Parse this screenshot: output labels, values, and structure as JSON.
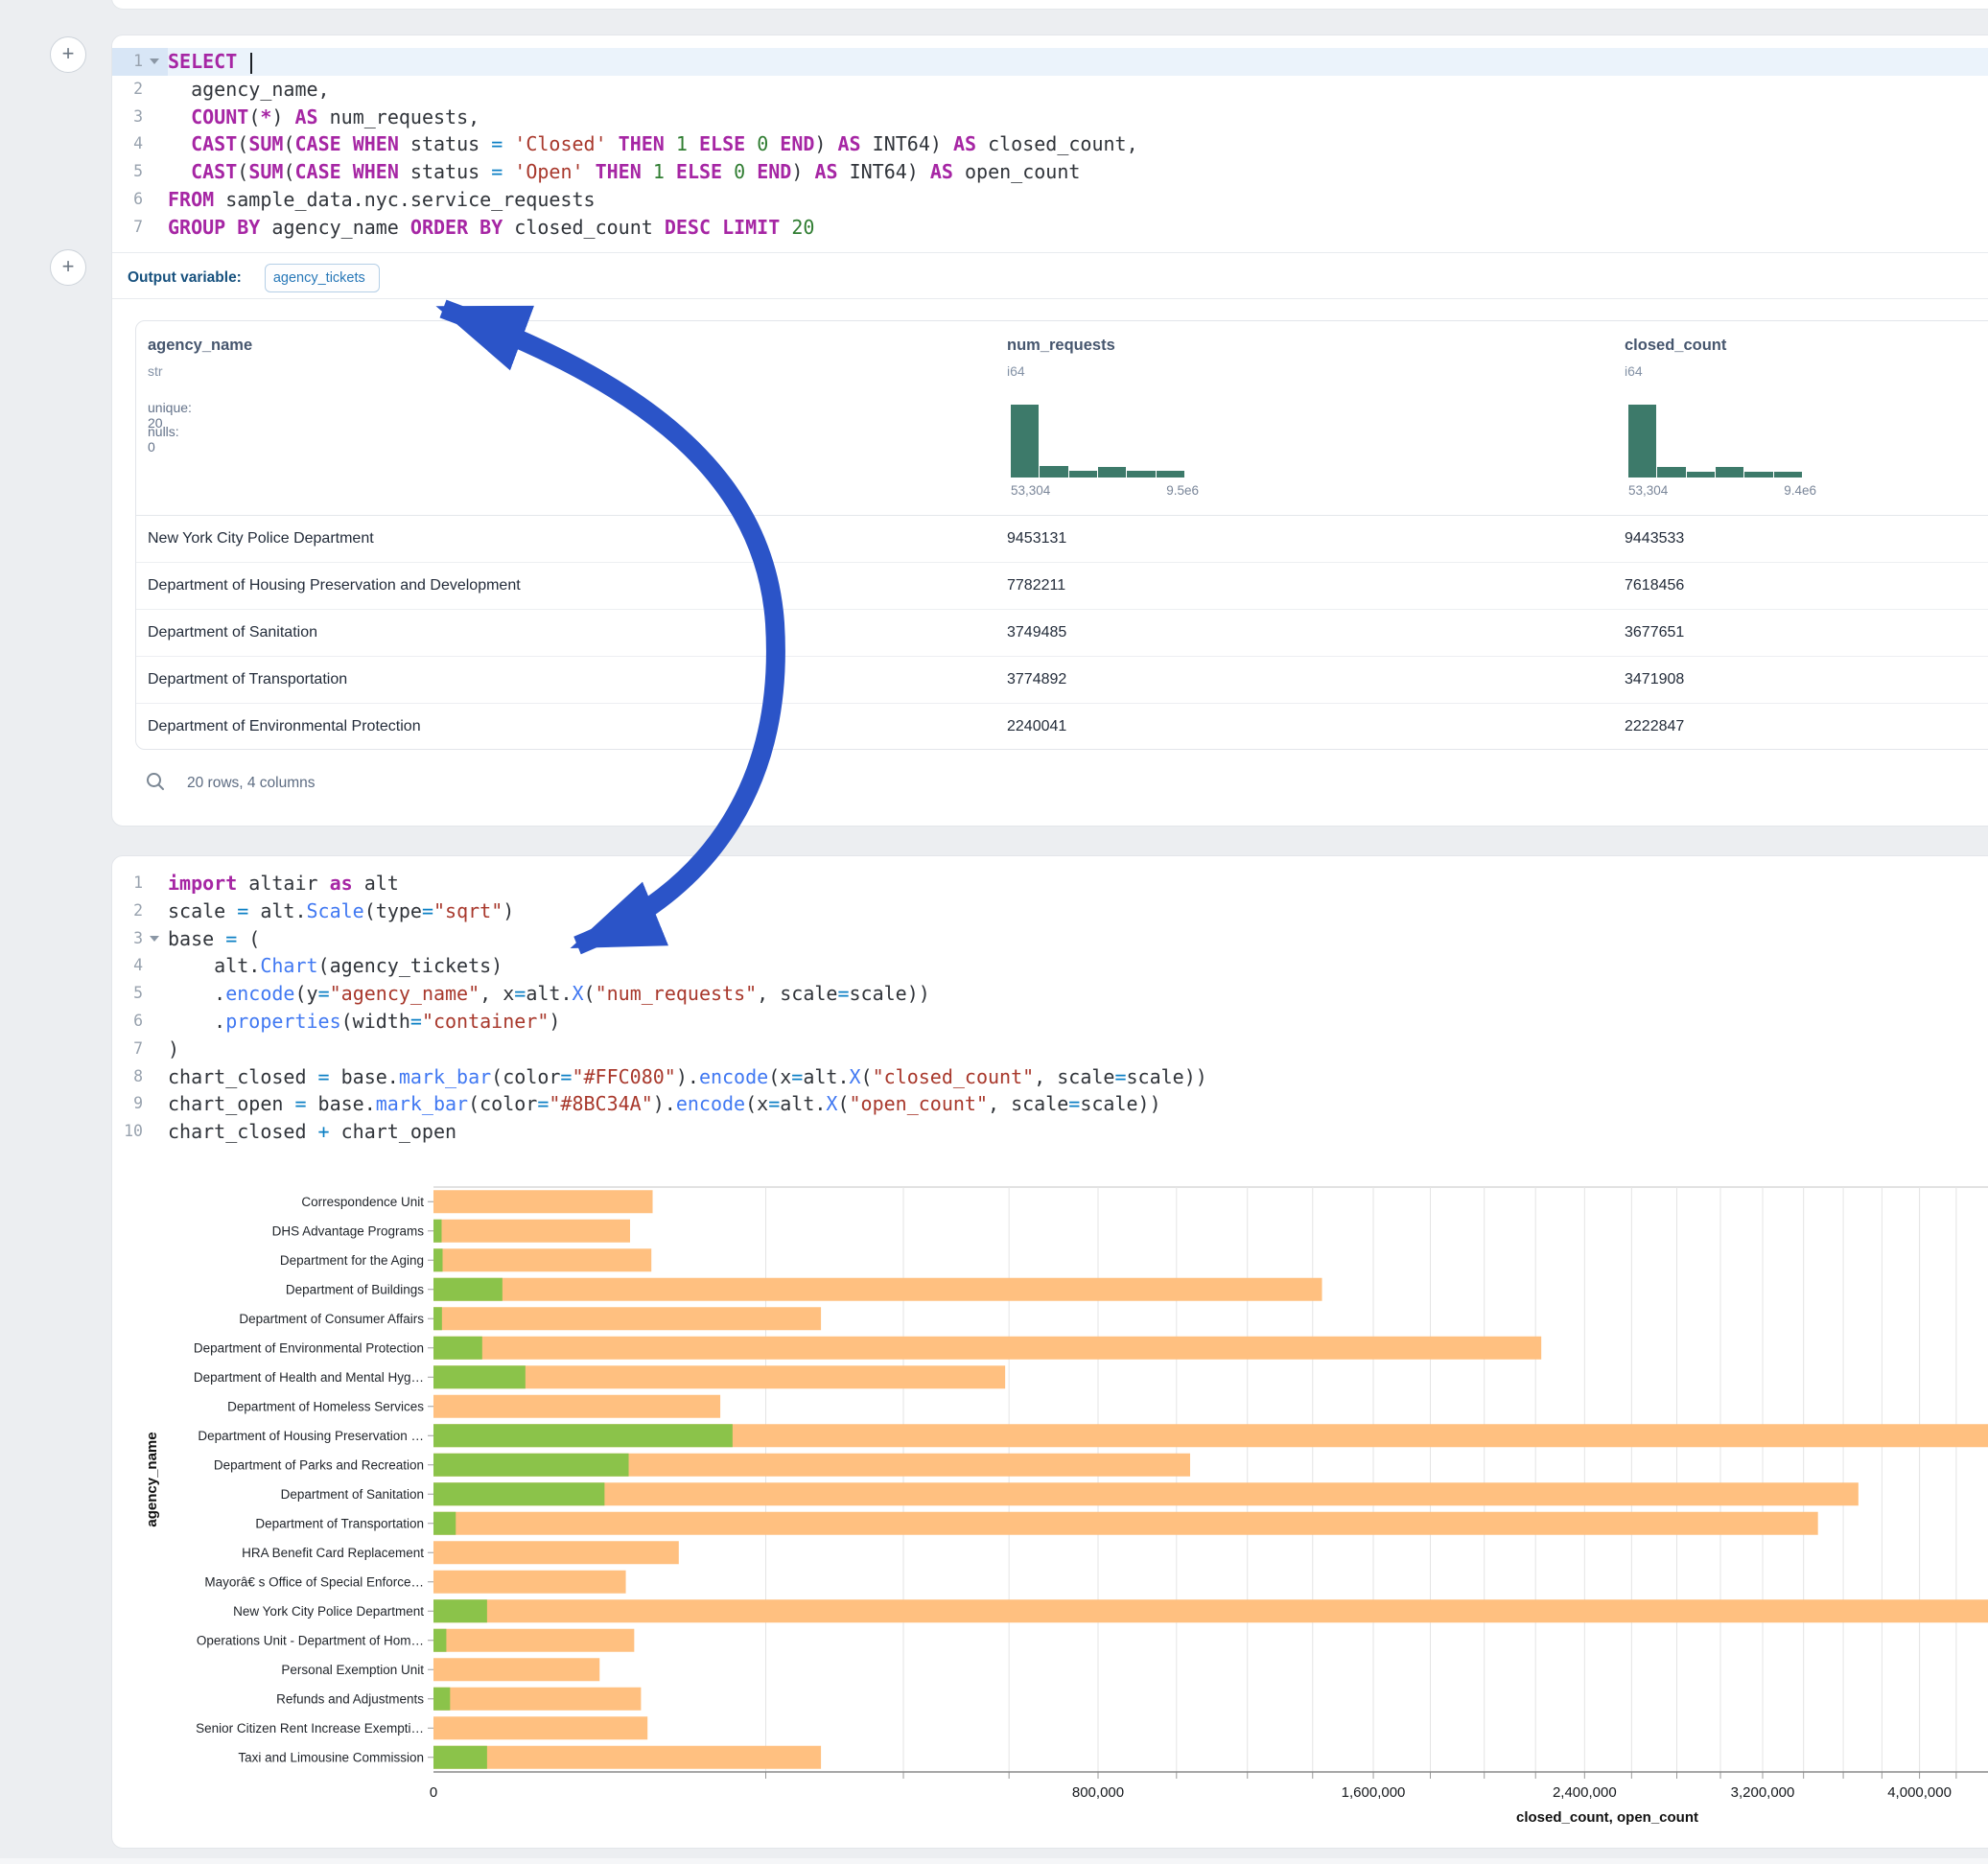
{
  "accent_colors": {
    "arrow_blue": "#2b54c8",
    "histogram_teal": "#3d7a6a",
    "bar_orange": "#FFC080",
    "bar_green": "#8BC34A"
  },
  "sql_cell": {
    "lines": [
      {
        "n": "1",
        "fold": true,
        "active": true,
        "cursor": true,
        "tokens": [
          [
            "kw",
            "SELECT"
          ],
          [
            "d",
            " "
          ]
        ]
      },
      {
        "n": "2",
        "tokens": [
          [
            "d",
            "  agency_name,"
          ]
        ]
      },
      {
        "n": "3",
        "tokens": [
          [
            "d",
            "  "
          ],
          [
            "kw",
            "COUNT"
          ],
          [
            "d",
            "("
          ],
          [
            "kw",
            "*"
          ],
          [
            "d",
            ") "
          ],
          [
            "kw",
            "AS"
          ],
          [
            "d",
            " num_requests,"
          ]
        ]
      },
      {
        "n": "4",
        "tokens": [
          [
            "d",
            "  "
          ],
          [
            "kw",
            "CAST"
          ],
          [
            "d",
            "("
          ],
          [
            "kw",
            "SUM"
          ],
          [
            "d",
            "("
          ],
          [
            "kw",
            "CASE"
          ],
          [
            "d",
            " "
          ],
          [
            "kw",
            "WHEN"
          ],
          [
            "d",
            " status "
          ],
          [
            "op",
            "="
          ],
          [
            "d",
            " "
          ],
          [
            "str",
            "'Closed'"
          ],
          [
            "d",
            " "
          ],
          [
            "kw",
            "THEN"
          ],
          [
            "d",
            " "
          ],
          [
            "num",
            "1"
          ],
          [
            "d",
            " "
          ],
          [
            "kw",
            "ELSE"
          ],
          [
            "d",
            " "
          ],
          [
            "num",
            "0"
          ],
          [
            "d",
            " "
          ],
          [
            "kw",
            "END"
          ],
          [
            "d",
            ") "
          ],
          [
            "kw",
            "AS"
          ],
          [
            "d",
            " INT64) "
          ],
          [
            "kw",
            "AS"
          ],
          [
            "d",
            " closed_count,"
          ]
        ]
      },
      {
        "n": "5",
        "tokens": [
          [
            "d",
            "  "
          ],
          [
            "kw",
            "CAST"
          ],
          [
            "d",
            "("
          ],
          [
            "kw",
            "SUM"
          ],
          [
            "d",
            "("
          ],
          [
            "kw",
            "CASE"
          ],
          [
            "d",
            " "
          ],
          [
            "kw",
            "WHEN"
          ],
          [
            "d",
            " status "
          ],
          [
            "op",
            "="
          ],
          [
            "d",
            " "
          ],
          [
            "str",
            "'Open'"
          ],
          [
            "d",
            " "
          ],
          [
            "kw",
            "THEN"
          ],
          [
            "d",
            " "
          ],
          [
            "num",
            "1"
          ],
          [
            "d",
            " "
          ],
          [
            "kw",
            "ELSE"
          ],
          [
            "d",
            " "
          ],
          [
            "num",
            "0"
          ],
          [
            "d",
            " "
          ],
          [
            "kw",
            "END"
          ],
          [
            "d",
            ") "
          ],
          [
            "kw",
            "AS"
          ],
          [
            "d",
            " INT64) "
          ],
          [
            "kw",
            "AS"
          ],
          [
            "d",
            " open_count"
          ]
        ]
      },
      {
        "n": "6",
        "tokens": [
          [
            "kw",
            "FROM"
          ],
          [
            "d",
            " sample_data.nyc.service_requests"
          ]
        ]
      },
      {
        "n": "7",
        "tokens": [
          [
            "kw",
            "GROUP"
          ],
          [
            "d",
            " "
          ],
          [
            "kw",
            "BY"
          ],
          [
            "d",
            " agency_name "
          ],
          [
            "kw",
            "ORDER"
          ],
          [
            "d",
            " "
          ],
          [
            "kw",
            "BY"
          ],
          [
            "d",
            " closed_count "
          ],
          [
            "kw",
            "DESC"
          ],
          [
            "d",
            " "
          ],
          [
            "kw",
            "LIMIT"
          ],
          [
            "d",
            " "
          ],
          [
            "num",
            "20"
          ]
        ]
      }
    ],
    "output_variable_label": "Output variable:",
    "output_variable_value": "agency_tickets"
  },
  "table": {
    "columns": [
      {
        "name": "agency_name",
        "type": "str",
        "stats": [
          "unique: 20",
          "nulls: 0"
        ]
      },
      {
        "name": "num_requests",
        "type": "i64",
        "hist": [
          1,
          0.16,
          0.09,
          0.15,
          0.09,
          0.09
        ],
        "hist_labels": [
          "53,304",
          "9.5e6"
        ]
      },
      {
        "name": "closed_count",
        "type": "i64",
        "hist": [
          1,
          0.15,
          0.08,
          0.14,
          0.08,
          0.08
        ],
        "hist_labels": [
          "53,304",
          "9.4e6"
        ]
      }
    ],
    "rows": [
      [
        "New York City Police Department",
        "9453131",
        "9443533"
      ],
      [
        "Department of Housing Preservation and Development",
        "7782211",
        "7618456"
      ],
      [
        "Department of Sanitation",
        "3749485",
        "3677651"
      ],
      [
        "Department of Transportation",
        "3774892",
        "3471908"
      ],
      [
        "Department of Environmental Protection",
        "2240041",
        "2222847"
      ]
    ],
    "footer": "20 rows, 4 columns"
  },
  "python_cell": {
    "lines": [
      {
        "n": "1",
        "tokens": [
          [
            "kw",
            "import"
          ],
          [
            "d",
            " altair "
          ],
          [
            "kw",
            "as"
          ],
          [
            "d",
            " alt"
          ]
        ]
      },
      {
        "n": "2",
        "tokens": [
          [
            "d",
            "scale "
          ],
          [
            "op",
            "="
          ],
          [
            "d",
            " alt."
          ],
          [
            "fn",
            "Scale"
          ],
          [
            "d",
            "(type"
          ],
          [
            "op",
            "="
          ],
          [
            "str",
            "\"sqrt\""
          ],
          [
            "d",
            ")"
          ]
        ]
      },
      {
        "n": "3",
        "fold": true,
        "tokens": [
          [
            "d",
            "base "
          ],
          [
            "op",
            "="
          ],
          [
            "d",
            " ("
          ]
        ]
      },
      {
        "n": "4",
        "tokens": [
          [
            "d",
            "    alt."
          ],
          [
            "fn",
            "Chart"
          ],
          [
            "d",
            "(agency_tickets)"
          ]
        ]
      },
      {
        "n": "5",
        "tokens": [
          [
            "d",
            "    ."
          ],
          [
            "fn",
            "encode"
          ],
          [
            "d",
            "(y"
          ],
          [
            "op",
            "="
          ],
          [
            "str",
            "\"agency_name\""
          ],
          [
            "d",
            ", x"
          ],
          [
            "op",
            "="
          ],
          [
            "d",
            "alt."
          ],
          [
            "fn",
            "X"
          ],
          [
            "d",
            "("
          ],
          [
            "str",
            "\"num_requests\""
          ],
          [
            "d",
            ", scale"
          ],
          [
            "op",
            "="
          ],
          [
            "d",
            "scale))"
          ]
        ]
      },
      {
        "n": "6",
        "tokens": [
          [
            "d",
            "    ."
          ],
          [
            "fn",
            "properties"
          ],
          [
            "d",
            "(width"
          ],
          [
            "op",
            "="
          ],
          [
            "str",
            "\"container\""
          ],
          [
            "d",
            ")"
          ]
        ]
      },
      {
        "n": "7",
        "tokens": [
          [
            "d",
            ")"
          ]
        ]
      },
      {
        "n": "8",
        "tokens": [
          [
            "d",
            "chart_closed "
          ],
          [
            "op",
            "="
          ],
          [
            "d",
            " base."
          ],
          [
            "fn",
            "mark_bar"
          ],
          [
            "d",
            "(color"
          ],
          [
            "op",
            "="
          ],
          [
            "str",
            "\"#FFC080\""
          ],
          [
            "d",
            ")."
          ],
          [
            "fn",
            "encode"
          ],
          [
            "d",
            "(x"
          ],
          [
            "op",
            "="
          ],
          [
            "d",
            "alt."
          ],
          [
            "fn",
            "X"
          ],
          [
            "d",
            "("
          ],
          [
            "str",
            "\"closed_count\""
          ],
          [
            "d",
            ", scale"
          ],
          [
            "op",
            "="
          ],
          [
            "d",
            "scale))"
          ]
        ]
      },
      {
        "n": "9",
        "tokens": [
          [
            "d",
            "chart_open "
          ],
          [
            "op",
            "="
          ],
          [
            "d",
            " base."
          ],
          [
            "fn",
            "mark_bar"
          ],
          [
            "d",
            "(color"
          ],
          [
            "op",
            "="
          ],
          [
            "str",
            "\"#8BC34A\""
          ],
          [
            "d",
            ")."
          ],
          [
            "fn",
            "encode"
          ],
          [
            "d",
            "(x"
          ],
          [
            "op",
            "="
          ],
          [
            "d",
            "alt."
          ],
          [
            "fn",
            "X"
          ],
          [
            "d",
            "("
          ],
          [
            "str",
            "\"open_count\""
          ],
          [
            "d",
            ", scale"
          ],
          [
            "op",
            "="
          ],
          [
            "d",
            "scale))"
          ]
        ]
      },
      {
        "n": "10",
        "tokens": [
          [
            "d",
            "chart_closed "
          ],
          [
            "op",
            "+"
          ],
          [
            "d",
            " chart_open"
          ]
        ]
      }
    ]
  },
  "chart_data": {
    "type": "bar",
    "orientation": "horizontal",
    "x_scale": "sqrt",
    "grid": true,
    "gridline_step": 200000,
    "xlabel": "closed_count, open_count",
    "ylabel": "agency_name",
    "x_ticks": [
      0,
      800000,
      1600000,
      2400000,
      3200000,
      4000000
    ],
    "x_tick_labels": [
      "0",
      "800,000",
      "1,600,000",
      "2,400,000",
      "3,200,000",
      "4,000,000"
    ],
    "categories": [
      "Correspondence Unit",
      "DHS Advantage Programs",
      "Department for the Aging",
      "Department of Buildings",
      "Department of Consumer Affairs",
      "Department of Environmental Protection",
      "Department of Health and Mental Hyg…",
      "Department of Homeless Services",
      "Department of Housing Preservation …",
      "Department of Parks and Recreation",
      "Department of Sanitation",
      "Department of Transportation",
      "HRA Benefit Card Replacement",
      "Mayorâ€ s Office of Special Enforce…",
      "New York City Police Department",
      "Operations Unit - Department of Hom…",
      "Personal Exemption Unit",
      "Refunds and Adjustments",
      "Senior Citizen Rent Increase Exempti…",
      "Taxi and Limousine Commission"
    ],
    "series": [
      {
        "name": "closed_count",
        "color": "#FFC080",
        "values": [
          87000,
          70000,
          86000,
          1430000,
          272000,
          2222847,
          592000,
          149000,
          7618456,
          1037000,
          3677651,
          3471908,
          109000,
          67000,
          9443533,
          73000,
          50000,
          78000,
          83000,
          272000
        ]
      },
      {
        "name": "open_count",
        "color": "#8BC34A",
        "values": [
          0,
          120,
          150,
          8600,
          130,
          4300,
          15300,
          0,
          162000,
          69000,
          53000,
          900,
          0,
          0,
          5200,
          300,
          0,
          500,
          0,
          5200
        ]
      }
    ]
  }
}
